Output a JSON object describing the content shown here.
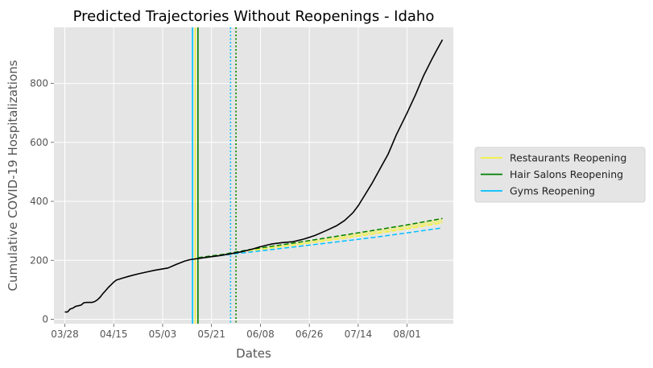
{
  "chart_data": {
    "type": "line",
    "title": "Predicted Trajectories Without Reopenings - Idaho",
    "xlabel": "Dates",
    "ylabel": "Cumulative COVID-19 Hospitalizations",
    "x_type": "date",
    "x_range": [
      "2020-03-24",
      "2020-08-18"
    ],
    "ylim": [
      -15,
      990
    ],
    "grid": true,
    "x_ticks": [
      {
        "date": "2020-03-28",
        "label": "03/28"
      },
      {
        "date": "2020-04-15",
        "label": "04/15"
      },
      {
        "date": "2020-05-03",
        "label": "05/03"
      },
      {
        "date": "2020-05-21",
        "label": "05/21"
      },
      {
        "date": "2020-06-08",
        "label": "06/08"
      },
      {
        "date": "2020-06-26",
        "label": "06/26"
      },
      {
        "date": "2020-07-14",
        "label": "07/14"
      },
      {
        "date": "2020-08-01",
        "label": "08/01"
      }
    ],
    "y_ticks": [
      0,
      200,
      400,
      600,
      800
    ],
    "series": [
      {
        "style": "solid",
        "color": "#000000",
        "points": [
          [
            "2020-03-28",
            25
          ],
          [
            "2020-03-29",
            25
          ],
          [
            "2020-03-30",
            35
          ],
          [
            "2020-03-31",
            38
          ],
          [
            "2020-04-01",
            44
          ],
          [
            "2020-04-02",
            46
          ],
          [
            "2020-04-03",
            48
          ],
          [
            "2020-04-04",
            56
          ],
          [
            "2020-04-05",
            57
          ],
          [
            "2020-04-06",
            57
          ],
          [
            "2020-04-07",
            57
          ],
          [
            "2020-04-08",
            60
          ],
          [
            "2020-04-09",
            66
          ],
          [
            "2020-04-10",
            75
          ],
          [
            "2020-04-11",
            87
          ],
          [
            "2020-04-12",
            97
          ],
          [
            "2020-04-13",
            108
          ],
          [
            "2020-04-14",
            117
          ],
          [
            "2020-04-15",
            126
          ],
          [
            "2020-04-16",
            133
          ],
          [
            "2020-04-18",
            139
          ],
          [
            "2020-04-21",
            147
          ],
          [
            "2020-04-24",
            154
          ],
          [
            "2020-04-27",
            160
          ],
          [
            "2020-04-30",
            166
          ],
          [
            "2020-05-03",
            171
          ],
          [
            "2020-05-05",
            174
          ],
          [
            "2020-05-08",
            186
          ],
          [
            "2020-05-11",
            197
          ],
          [
            "2020-05-13",
            202
          ],
          [
            "2020-05-16",
            206
          ],
          [
            "2020-05-20",
            211
          ],
          [
            "2020-05-24",
            216
          ],
          [
            "2020-05-28",
            222
          ],
          [
            "2020-06-01",
            229
          ],
          [
            "2020-06-05",
            238
          ],
          [
            "2020-06-08",
            246
          ],
          [
            "2020-06-12",
            255
          ],
          [
            "2020-06-16",
            260
          ],
          [
            "2020-06-20",
            263
          ],
          [
            "2020-06-24",
            272
          ],
          [
            "2020-06-28",
            284
          ],
          [
            "2020-07-02",
            300
          ],
          [
            "2020-07-06",
            317
          ],
          [
            "2020-07-09",
            335
          ],
          [
            "2020-07-12",
            361
          ],
          [
            "2020-07-14",
            385
          ],
          [
            "2020-07-16",
            415
          ],
          [
            "2020-07-19",
            460
          ],
          [
            "2020-07-22",
            510
          ],
          [
            "2020-07-25",
            560
          ],
          [
            "2020-07-28",
            625
          ],
          [
            "2020-08-01",
            700
          ],
          [
            "2020-08-04",
            760
          ],
          [
            "2020-08-07",
            825
          ],
          [
            "2020-08-10",
            880
          ],
          [
            "2020-08-12",
            915
          ],
          [
            "2020-08-14",
            948
          ]
        ]
      },
      {
        "name": "Restaurants Reopening",
        "style": "dashed",
        "color": "#f2f23a",
        "points": [
          [
            "2020-05-16",
            209
          ],
          [
            "2020-05-25",
            219
          ],
          [
            "2020-06-05",
            234
          ],
          [
            "2020-06-20",
            251
          ],
          [
            "2020-07-05",
            270
          ],
          [
            "2020-07-20",
            290
          ],
          [
            "2020-08-01",
            307
          ],
          [
            "2020-08-14",
            327
          ]
        ]
      },
      {
        "name": "Hair Salons Reopening",
        "style": "dashed",
        "color": "#007f00",
        "points": [
          [
            "2020-05-16",
            209
          ],
          [
            "2020-05-25",
            220
          ],
          [
            "2020-06-05",
            238
          ],
          [
            "2020-06-20",
            258
          ],
          [
            "2020-07-05",
            280
          ],
          [
            "2020-07-20",
            302
          ],
          [
            "2020-08-01",
            320
          ],
          [
            "2020-08-14",
            342
          ]
        ]
      },
      {
        "name": "Gyms Reopening",
        "style": "dashed",
        "color": "#00bfff",
        "points": [
          [
            "2020-05-16",
            209
          ],
          [
            "2020-05-25",
            217
          ],
          [
            "2020-06-05",
            229
          ],
          [
            "2020-06-20",
            245
          ],
          [
            "2020-07-05",
            261
          ],
          [
            "2020-07-20",
            278
          ],
          [
            "2020-08-01",
            293
          ],
          [
            "2020-08-14",
            310
          ]
        ]
      }
    ],
    "vlines": [
      {
        "date": "2020-05-15",
        "color": "#f2f23a",
        "style": "solid"
      },
      {
        "date": "2020-05-16",
        "color": "#007f00",
        "style": "solid"
      },
      {
        "date": "2020-05-14",
        "color": "#00bfff",
        "style": "solid"
      },
      {
        "date": "2020-05-30",
        "color": "#f2f23a",
        "style": "dotted"
      },
      {
        "date": "2020-05-30",
        "color": "#007f00",
        "style": "dotted"
      },
      {
        "date": "2020-05-28",
        "color": "#00bfff",
        "style": "dotted"
      }
    ],
    "legend": {
      "placement": "right",
      "entries": [
        {
          "label": "Restaurants Reopening",
          "color": "#f2f23a"
        },
        {
          "label": "Hair Salons Reopening",
          "color": "#007f00"
        },
        {
          "label": "Gyms Reopening",
          "color": "#00bfff"
        }
      ]
    }
  }
}
